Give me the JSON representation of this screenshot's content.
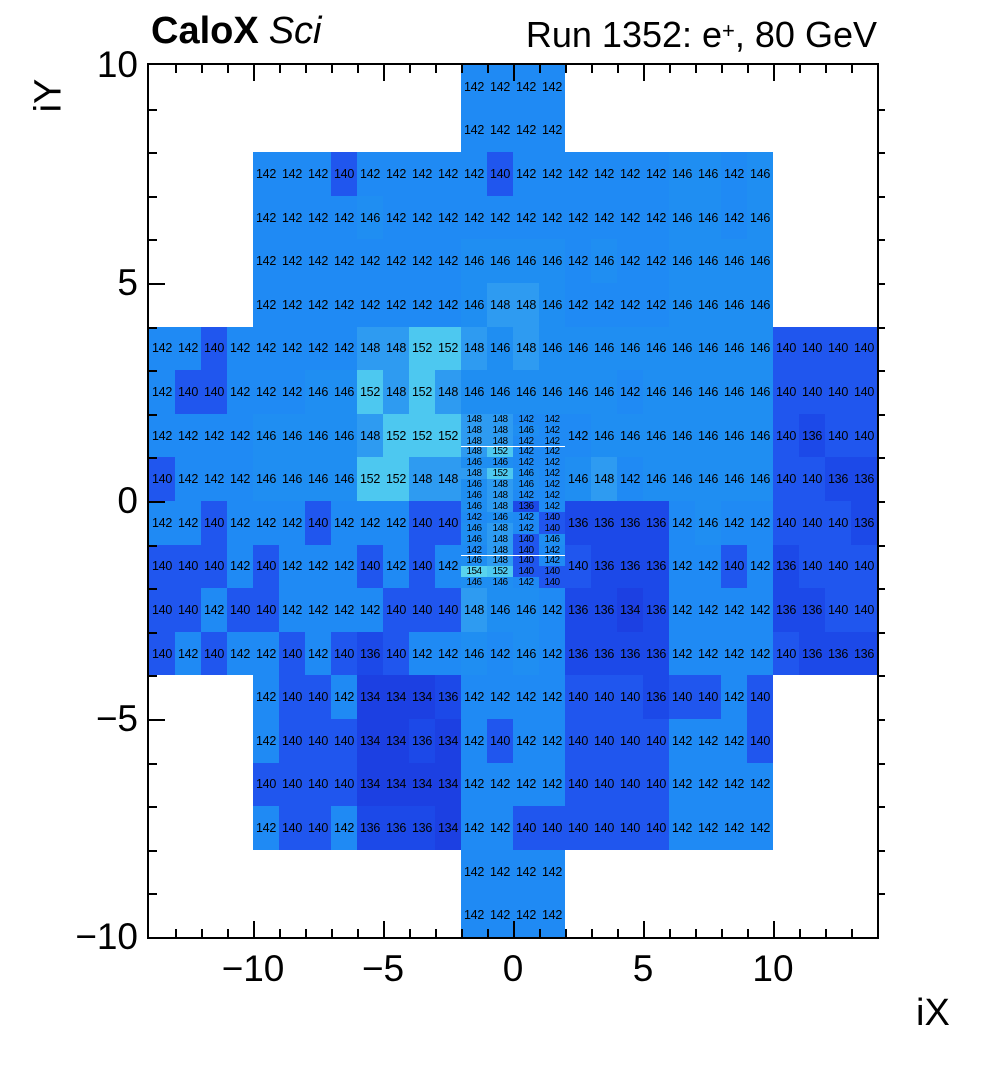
{
  "header": {
    "experiment": "CaloX",
    "detector": "Sci",
    "run_prefix": "Run 1352: e",
    "run_sup": "+",
    "run_suffix": ", 80 GeV"
  },
  "axes": {
    "x_title": "iX",
    "y_title": "iY",
    "x_tick_labels": [
      {
        "label": "−10",
        "value": -10
      },
      {
        "label": "−5",
        "value": -5
      },
      {
        "label": "0",
        "value": 0
      },
      {
        "label": "5",
        "value": 5
      },
      {
        "label": "10",
        "value": 10
      }
    ],
    "y_tick_labels": [
      {
        "label": "10",
        "value": 10
      },
      {
        "label": "5",
        "value": 5
      },
      {
        "label": "0",
        "value": 0
      },
      {
        "label": "−5",
        "value": -5
      },
      {
        "label": "−10",
        "value": -10
      }
    ]
  },
  "chart_data": {
    "type": "heatmap",
    "title": "CaloX Sci — Run 1352: e+, 80 GeV",
    "xlabel": "iX",
    "ylabel": "iY",
    "x_range": [
      -14,
      14
    ],
    "y_range": [
      -10,
      10
    ],
    "palette": {
      "134": "#1c40e2",
      "136": "#1c49e8",
      "140": "#2056ee",
      "142": "#1f8af4",
      "146": "#1f8ef2",
      "148": "#2e9bf1",
      "152": "#4dc8f0",
      "154": "#59d3ee"
    },
    "coarse_rows": [
      {
        "iy": 9,
        "x_start": -2,
        "values": [
          142,
          142,
          142,
          142
        ]
      },
      {
        "iy": 8,
        "x_start": -2,
        "values": [
          142,
          142,
          142,
          142
        ]
      },
      {
        "iy": 7,
        "x_start": -10,
        "values": [
          142,
          142,
          142,
          140,
          142,
          142,
          142,
          142,
          142,
          140,
          142,
          142,
          142,
          142,
          142,
          142,
          146,
          146,
          142,
          146
        ]
      },
      {
        "iy": 6,
        "x_start": -10,
        "values": [
          142,
          142,
          142,
          142,
          146,
          142,
          142,
          142,
          142,
          142,
          142,
          142,
          142,
          142,
          142,
          142,
          146,
          146,
          142,
          146
        ]
      },
      {
        "iy": 5,
        "x_start": -10,
        "values": [
          142,
          142,
          142,
          142,
          142,
          142,
          142,
          142,
          146,
          146,
          146,
          146,
          142,
          146,
          142,
          142,
          146,
          146,
          146,
          146
        ]
      },
      {
        "iy": 4,
        "x_start": -10,
        "values": [
          142,
          142,
          142,
          142,
          142,
          142,
          142,
          142,
          146,
          148,
          148,
          146,
          142,
          142,
          142,
          142,
          146,
          146,
          146,
          146
        ]
      },
      {
        "iy": 3,
        "x_start": -14,
        "values": [
          142,
          142,
          140,
          142,
          142,
          142,
          142,
          142,
          148,
          148,
          152,
          152,
          148,
          146,
          148,
          146,
          146,
          146,
          146,
          146,
          146,
          146,
          146,
          146,
          140,
          140,
          140,
          140
        ]
      },
      {
        "iy": 2,
        "x_start": -14,
        "values": [
          142,
          140,
          140,
          142,
          142,
          142,
          146,
          146,
          152,
          148,
          152,
          148,
          146,
          146,
          146,
          146,
          146,
          146,
          142,
          146,
          146,
          146,
          146,
          146,
          140,
          140,
          140,
          140
        ]
      },
      {
        "iy": 1,
        "x_start": -14,
        "values": [
          142,
          142,
          142,
          142,
          146,
          146,
          146,
          146,
          148,
          152,
          152,
          152,
          null,
          null,
          null,
          null,
          142,
          146,
          146,
          146,
          146,
          146,
          146,
          146,
          140,
          136,
          140,
          140
        ]
      },
      {
        "iy": 0,
        "x_start": -14,
        "values": [
          140,
          142,
          142,
          142,
          146,
          146,
          146,
          146,
          152,
          152,
          148,
          148,
          null,
          null,
          null,
          null,
          146,
          148,
          142,
          146,
          146,
          146,
          146,
          146,
          140,
          140,
          136,
          136
        ]
      },
      {
        "iy": -1,
        "x_start": -14,
        "values": [
          142,
          142,
          140,
          142,
          142,
          142,
          140,
          142,
          142,
          142,
          140,
          140,
          null,
          null,
          null,
          null,
          136,
          136,
          136,
          136,
          142,
          146,
          142,
          142,
          140,
          140,
          140,
          136
        ]
      },
      {
        "iy": -2,
        "x_start": -14,
        "values": [
          140,
          140,
          140,
          142,
          140,
          142,
          142,
          142,
          140,
          142,
          140,
          142,
          null,
          null,
          null,
          null,
          140,
          136,
          136,
          136,
          142,
          142,
          140,
          142,
          136,
          140,
          140,
          140
        ]
      },
      {
        "iy": -3,
        "x_start": -14,
        "values": [
          140,
          140,
          142,
          140,
          140,
          142,
          142,
          142,
          142,
          140,
          140,
          140,
          148,
          146,
          146,
          142,
          136,
          136,
          134,
          136,
          142,
          142,
          142,
          142,
          136,
          136,
          140,
          140
        ]
      },
      {
        "iy": -4,
        "x_start": -14,
        "values": [
          140,
          142,
          140,
          142,
          142,
          140,
          142,
          140,
          136,
          140,
          142,
          142,
          146,
          142,
          146,
          142,
          136,
          136,
          136,
          136,
          142,
          142,
          142,
          142,
          140,
          136,
          136,
          136
        ]
      },
      {
        "iy": -5,
        "x_start": -10,
        "values": [
          142,
          140,
          140,
          142,
          134,
          134,
          134,
          136,
          142,
          142,
          142,
          142,
          140,
          140,
          140,
          136,
          140,
          140,
          142,
          140
        ]
      },
      {
        "iy": -6,
        "x_start": -10,
        "values": [
          142,
          140,
          140,
          140,
          134,
          134,
          136,
          134,
          142,
          140,
          142,
          142,
          140,
          140,
          140,
          140,
          142,
          142,
          142,
          140
        ]
      },
      {
        "iy": -7,
        "x_start": -10,
        "values": [
          140,
          140,
          140,
          140,
          134,
          134,
          134,
          134,
          142,
          142,
          142,
          142,
          140,
          140,
          140,
          140,
          142,
          142,
          142,
          142
        ]
      },
      {
        "iy": -8,
        "x_start": -10,
        "values": [
          142,
          140,
          140,
          142,
          136,
          136,
          136,
          134,
          142,
          142,
          140,
          140,
          140,
          140,
          140,
          140,
          142,
          142,
          142,
          142
        ]
      },
      {
        "iy": -9,
        "x_start": -2,
        "values": [
          142,
          142,
          142,
          142
        ]
      },
      {
        "iy": -10,
        "x_start": -2,
        "values": [
          142,
          142,
          142,
          142
        ]
      }
    ],
    "fine_region": {
      "x_start": -2,
      "y_top_edge": 2,
      "cols": 4,
      "rows": 16,
      "cell_w_units": 1,
      "cell_h_units": 0.25,
      "values": [
        [
          148,
          148,
          142,
          142
        ],
        [
          148,
          148,
          146,
          142
        ],
        [
          148,
          148,
          142,
          142
        ],
        [
          148,
          152,
          142,
          142
        ],
        [
          146,
          146,
          142,
          142
        ],
        [
          148,
          152,
          146,
          142
        ],
        [
          146,
          148,
          146,
          142
        ],
        [
          146,
          148,
          142,
          142
        ],
        [
          146,
          148,
          136,
          142
        ],
        [
          142,
          146,
          142,
          140
        ],
        [
          146,
          148,
          142,
          140
        ],
        [
          146,
          148,
          140,
          146
        ],
        [
          142,
          148,
          140,
          142
        ],
        [
          146,
          148,
          140,
          142
        ],
        [
          154,
          152,
          140,
          140
        ],
        [
          146,
          146,
          142,
          140
        ]
      ]
    }
  }
}
